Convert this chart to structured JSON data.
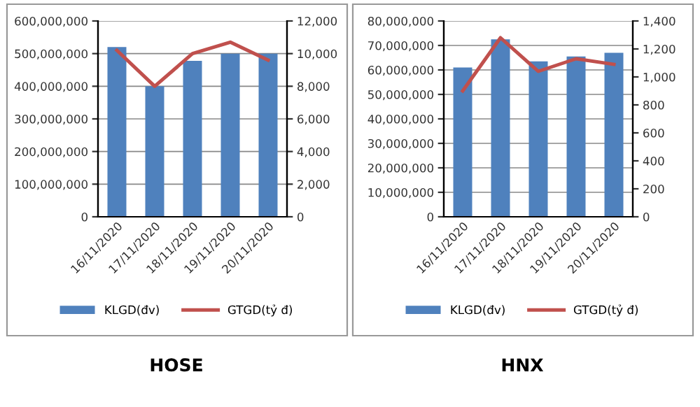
{
  "chart_data": [
    {
      "type": "bar",
      "title": "HOSE",
      "categories": [
        "16/11/2020",
        "17/11/2020",
        "18/11/2020",
        "19/11/2020",
        "20/11/2020"
      ],
      "series": [
        {
          "name": "KLGD(đv)",
          "color": "#4f81bd",
          "values": [
            520000000,
            400000000,
            478000000,
            500000000,
            500000000
          ]
        },
        {
          "name": "GTGD(tỷ đ)",
          "type": "line",
          "axis": "y2",
          "color": "#c0504d",
          "values": [
            10200,
            8000,
            10000,
            10700,
            9600
          ]
        }
      ],
      "ylim": [
        0,
        600000000
      ],
      "yticks": [
        {
          "value": 0,
          "label": "0"
        },
        {
          "value": 100000000,
          "label": "100,000,000"
        },
        {
          "value": 200000000,
          "label": "200,000,000"
        },
        {
          "value": 300000000,
          "label": "300,000,000"
        },
        {
          "value": 400000000,
          "label": "400,000,000"
        },
        {
          "value": 500000000,
          "label": "500,000,000"
        },
        {
          "value": 600000000,
          "label": "600,000,000"
        }
      ],
      "y2lim": [
        0,
        12000
      ],
      "y2ticks": [
        {
          "value": 0,
          "label": "0"
        },
        {
          "value": 2000,
          "label": "2,000"
        },
        {
          "value": 4000,
          "label": "4,000"
        },
        {
          "value": 6000,
          "label": "6,000"
        },
        {
          "value": 8000,
          "label": "8,000"
        },
        {
          "value": 10000,
          "label": "10,000"
        },
        {
          "value": 12000,
          "label": "12,000"
        }
      ],
      "grid": "y",
      "legend": "bottom",
      "marker": "none",
      "line_style": "solid"
    },
    {
      "type": "bar",
      "title": "HNX",
      "categories": [
        "16/11/2020",
        "17/11/2020",
        "18/11/2020",
        "19/11/2020",
        "20/11/2020"
      ],
      "series": [
        {
          "name": "KLGD(đv)",
          "color": "#4f81bd",
          "values": [
            61000000,
            72500000,
            63500000,
            65500000,
            67000000
          ]
        },
        {
          "name": "GTGD(tỷ đ)",
          "type": "line",
          "axis": "y2",
          "color": "#c0504d",
          "values": [
            900,
            1280,
            1040,
            1130,
            1090
          ]
        }
      ],
      "ylim": [
        0,
        80000000
      ],
      "yticks": [
        {
          "value": 0,
          "label": "0"
        },
        {
          "value": 10000000,
          "label": "10,000,000"
        },
        {
          "value": 20000000,
          "label": "20,000,000"
        },
        {
          "value": 30000000,
          "label": "30,000,000"
        },
        {
          "value": 40000000,
          "label": "40,000,000"
        },
        {
          "value": 50000000,
          "label": "50,000,000"
        },
        {
          "value": 60000000,
          "label": "60,000,000"
        },
        {
          "value": 70000000,
          "label": "70,000,000"
        },
        {
          "value": 80000000,
          "label": "80,000,000"
        }
      ],
      "y2lim": [
        0,
        1400
      ],
      "y2ticks": [
        {
          "value": 0,
          "label": "0"
        },
        {
          "value": 200,
          "label": "200"
        },
        {
          "value": 400,
          "label": "400"
        },
        {
          "value": 600,
          "label": "600"
        },
        {
          "value": 800,
          "label": "800"
        },
        {
          "value": 1000,
          "label": "1,000"
        },
        {
          "value": 1200,
          "label": "1,200"
        },
        {
          "value": 1400,
          "label": "1,400"
        }
      ],
      "grid": "y",
      "legend": "bottom",
      "marker": "none",
      "line_style": "solid"
    }
  ]
}
